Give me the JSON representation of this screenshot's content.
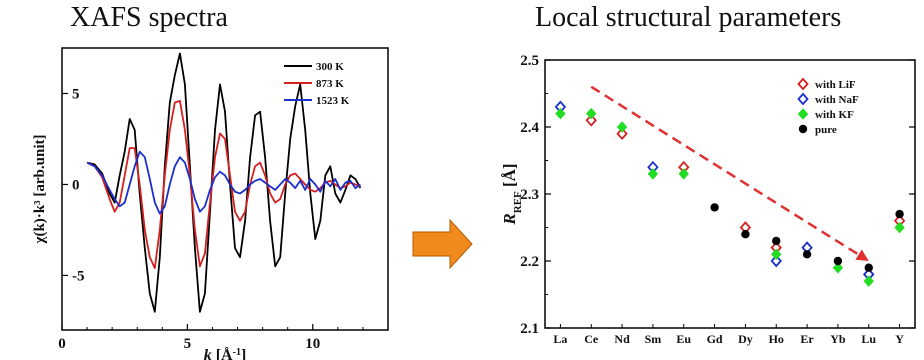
{
  "headings": {
    "left": "XAFS spectra",
    "right": "Local structural parameters"
  },
  "arrow": {
    "color": "#f08a1c",
    "border": "#b35a00"
  },
  "chart_data": [
    {
      "type": "line",
      "title": "XAFS spectra",
      "xlabel_pre": "k",
      "xlabel_post": " [Å",
      "xlabel_sup": "-1",
      "xlabel_end": "]",
      "ylabel": "χ(k)·k³ [arb.unit]",
      "xlim": [
        0,
        13
      ],
      "ylim": [
        -8,
        7.5
      ],
      "xticks": [
        0,
        5,
        10
      ],
      "yticks": [
        -5,
        0,
        5
      ],
      "legend_position": "top-right",
      "series": [
        {
          "name": "300 K",
          "color": "#000000",
          "x": [
            1.0,
            1.3,
            1.6,
            1.9,
            2.1,
            2.3,
            2.5,
            2.7,
            2.9,
            3.1,
            3.3,
            3.5,
            3.7,
            3.9,
            4.1,
            4.3,
            4.5,
            4.7,
            4.9,
            5.1,
            5.3,
            5.5,
            5.7,
            5.9,
            6.1,
            6.3,
            6.5,
            6.7,
            6.9,
            7.1,
            7.3,
            7.5,
            7.7,
            7.9,
            8.1,
            8.3,
            8.5,
            8.7,
            8.9,
            9.1,
            9.3,
            9.5,
            9.7,
            9.9,
            10.1,
            10.3,
            10.5,
            10.7,
            10.9,
            11.1,
            11.3,
            11.5,
            11.7,
            11.9
          ],
          "y": [
            1.2,
            1.1,
            0.6,
            -0.5,
            -1.0,
            0.5,
            1.8,
            3.6,
            3.0,
            -0.5,
            -3.5,
            -6.0,
            -7.0,
            -4.0,
            1.0,
            4.5,
            6.0,
            7.2,
            5.5,
            1.0,
            -3.5,
            -7.0,
            -6.0,
            -1.5,
            3.0,
            5.5,
            4.0,
            0.0,
            -3.5,
            -4.0,
            -2.0,
            1.5,
            3.8,
            4.0,
            1.5,
            -2.0,
            -4.5,
            -4.0,
            -0.5,
            2.5,
            4.3,
            5.5,
            3.0,
            -0.5,
            -3.0,
            -2.0,
            0.5,
            1.0,
            -0.5,
            -1.0,
            -0.3,
            0.5,
            0.3,
            -0.2
          ]
        },
        {
          "name": "873 K",
          "color": "#d42020",
          "x": [
            1.0,
            1.3,
            1.6,
            1.9,
            2.1,
            2.3,
            2.5,
            2.7,
            2.9,
            3.1,
            3.3,
            3.5,
            3.7,
            3.9,
            4.1,
            4.3,
            4.5,
            4.7,
            4.9,
            5.1,
            5.3,
            5.5,
            5.7,
            5.9,
            6.1,
            6.3,
            6.5,
            6.7,
            6.9,
            7.1,
            7.3,
            7.5,
            7.7,
            7.9,
            8.1,
            8.3,
            8.5,
            8.7,
            8.9,
            9.1,
            9.3,
            9.5,
            9.7,
            9.9,
            10.1,
            10.3,
            10.5,
            10.7,
            10.9,
            11.1,
            11.3,
            11.5,
            11.7,
            11.9
          ],
          "y": [
            1.2,
            1.0,
            0.4,
            -0.8,
            -1.5,
            -1.0,
            0.5,
            2.0,
            2.0,
            0.0,
            -2.5,
            -4.0,
            -4.6,
            -2.5,
            0.5,
            3.0,
            4.5,
            4.6,
            3.0,
            0.5,
            -2.5,
            -4.5,
            -3.8,
            -1.0,
            1.5,
            2.8,
            2.5,
            0.5,
            -1.5,
            -2.0,
            -1.5,
            0.0,
            1.0,
            1.2,
            0.5,
            -0.5,
            -1.0,
            -0.8,
            0.0,
            0.5,
            0.6,
            0.3,
            0.0,
            -0.3,
            -0.4,
            -0.2,
            0.1,
            0.2,
            0.0,
            -0.2,
            -0.1,
            0.1,
            0.0,
            -0.1
          ]
        },
        {
          "name": "1523 K",
          "color": "#1a2fcc",
          "x": [
            1.0,
            1.3,
            1.6,
            1.9,
            2.1,
            2.3,
            2.5,
            2.7,
            2.9,
            3.1,
            3.3,
            3.5,
            3.7,
            3.9,
            4.1,
            4.3,
            4.5,
            4.7,
            4.9,
            5.1,
            5.3,
            5.5,
            5.7,
            5.9,
            6.1,
            6.3,
            6.5,
            6.7,
            6.9,
            7.1,
            7.3,
            7.5,
            7.7,
            7.9,
            8.1,
            8.3,
            8.5,
            8.7,
            8.9,
            9.1,
            9.3,
            9.5,
            9.7,
            9.9,
            10.1,
            10.3,
            10.5,
            10.7,
            10.9,
            11.1,
            11.3,
            11.5,
            11.7,
            11.9
          ],
          "y": [
            1.2,
            1.0,
            0.5,
            -0.3,
            -0.8,
            -1.2,
            -1.0,
            0.0,
            1.0,
            1.8,
            1.5,
            0.3,
            -1.0,
            -1.6,
            -1.2,
            0.0,
            1.0,
            1.5,
            1.2,
            0.3,
            -0.8,
            -1.5,
            -1.2,
            -0.3,
            0.4,
            0.7,
            0.5,
            0.0,
            -0.4,
            -0.5,
            -0.3,
            0.0,
            0.2,
            0.3,
            0.1,
            -0.1,
            -0.3,
            0.0,
            0.3,
            0.1,
            -0.2,
            0.2,
            -0.3,
            0.3,
            0.0,
            -0.4,
            0.2,
            -0.1,
            0.3,
            -0.3,
            0.1,
            0.2,
            -0.2,
            0.0
          ]
        }
      ]
    },
    {
      "type": "scatter",
      "title": "Local structural parameters",
      "ylabel_main": "R",
      "ylabel_sub": "REF",
      "ylabel_unit": " [Å]",
      "categories": [
        "La",
        "Ce",
        "Nd",
        "Sm",
        "Eu",
        "Gd",
        "Dy",
        "Ho",
        "Er",
        "Yb",
        "Lu",
        "Y"
      ],
      "ylim": [
        2.1,
        2.5
      ],
      "yticks": [
        "2.1",
        "2.2",
        "2.3",
        "2.4",
        "2.5"
      ],
      "legend_position": "top-right",
      "trend_arrow": {
        "from": [
          "Ce",
          2.46
        ],
        "to": [
          "Lu",
          2.2
        ],
        "color": "#e03030"
      },
      "series": [
        {
          "name": "with LiF",
          "color": "#d42020",
          "marker": "open-diamond",
          "values": [
            null,
            2.41,
            2.39,
            null,
            2.34,
            null,
            2.25,
            2.22,
            null,
            null,
            2.18,
            2.26
          ]
        },
        {
          "name": "with NaF",
          "color": "#1a2fcc",
          "marker": "open-diamond",
          "values": [
            2.43,
            null,
            null,
            2.34,
            null,
            null,
            null,
            2.2,
            2.22,
            null,
            2.18,
            null
          ]
        },
        {
          "name": "with KF",
          "color": "#22dd22",
          "marker": "filled-diamond",
          "values": [
            2.42,
            2.42,
            2.4,
            2.33,
            2.33,
            null,
            null,
            2.21,
            null,
            2.19,
            2.17,
            2.25
          ]
        },
        {
          "name": "pure",
          "color": "#000000",
          "marker": "filled-circle",
          "values": [
            null,
            null,
            null,
            null,
            null,
            2.28,
            2.24,
            2.23,
            2.21,
            2.2,
            2.19,
            2.27
          ]
        }
      ]
    }
  ]
}
